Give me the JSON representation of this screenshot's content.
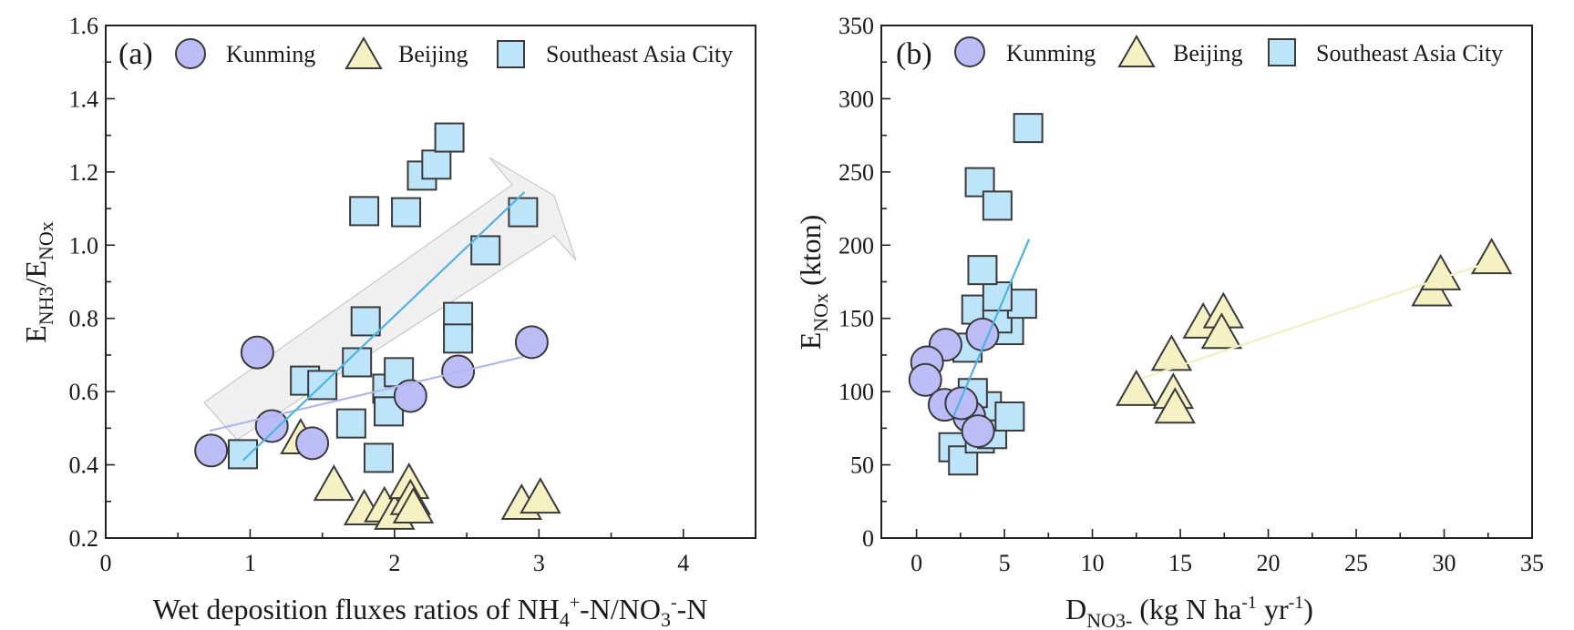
{
  "colors": {
    "Kunming": "#bcbdf6",
    "Beijing": "#f6f1c2",
    "Southeast Asia City": "#bde5fa",
    "marker_edge": "#3a3a3a",
    "trend_Kunming": "#b3b5f2",
    "trend_Southeast Asia City": "#4db3e6",
    "trend_Beijing": "#f2eec0",
    "arrow_fill": "#f0f0f0",
    "arrow_edge": "#c8c8c8"
  },
  "chart_data": [
    {
      "type": "scatter",
      "panel_label": "(a)",
      "title": "",
      "xlabel": {
        "main": "Wet deposition fluxes ratios of NH",
        "sub1": "4",
        "sup1": "+",
        "mid": "-N/NO",
        "sub2": "3",
        "sup2": "-",
        "end": "-N"
      },
      "ylabel": {
        "E1": "E",
        "sub1": "NH3",
        "slash": "/E",
        "sub2": "NOx"
      },
      "xlim": [
        0,
        4.5
      ],
      "ylim": [
        0.2,
        1.6
      ],
      "xticks": [
        0,
        1,
        2,
        3,
        4
      ],
      "xminor": [
        0.5,
        1.5,
        2.5,
        3.5
      ],
      "yticks": [
        0.2,
        0.4,
        0.6,
        0.8,
        1.0,
        1.2,
        1.4,
        1.6
      ],
      "ytick_labels": [
        "0.2",
        "0.4",
        "0.6",
        "0.8",
        "1.0",
        "1.2",
        "1.4",
        "1.6"
      ],
      "yminor": [
        0.3,
        0.5,
        0.7,
        0.9,
        1.1,
        1.3,
        1.5
      ],
      "legend": {
        "placement": "top",
        "entries": [
          "Kunming",
          "Beijing",
          "Southeast Asia City"
        ]
      },
      "annotation": "shaded arrow indicating increasing trend",
      "series": [
        {
          "name": "Kunming",
          "marker": "circle",
          "x": [
            0.73,
            1.05,
            1.15,
            1.43,
            2.11,
            2.44,
            2.95
          ],
          "y": [
            0.439,
            0.707,
            0.506,
            0.459,
            0.588,
            0.655,
            0.735
          ]
        },
        {
          "name": "Beijing",
          "marker": "triangle",
          "x": [
            1.35,
            1.58,
            1.79,
            1.93,
            2.0,
            2.1,
            2.11,
            2.13,
            2.88,
            3.01
          ],
          "y": [
            0.476,
            0.349,
            0.282,
            0.29,
            0.27,
            0.354,
            0.31,
            0.287,
            0.297,
            0.314
          ]
        },
        {
          "name": "Southeast Asia City",
          "marker": "square",
          "x": [
            0.95,
            1.38,
            1.5,
            1.7,
            1.74,
            1.79,
            1.8,
            1.89,
            1.95,
            1.96,
            2.03,
            2.08,
            2.19,
            2.29,
            2.38,
            2.44,
            2.44,
            2.63,
            2.89
          ],
          "y": [
            0.429,
            0.63,
            0.618,
            0.513,
            0.68,
            1.093,
            0.792,
            0.419,
            0.608,
            0.546,
            0.653,
            1.09,
            1.19,
            1.22,
            1.294,
            0.804,
            0.745,
            0.986,
            1.09
          ]
        }
      ],
      "trendlines": [
        {
          "name": "Kunming",
          "x": [
            0.72,
            2.89
          ],
          "y": [
            0.493,
            0.695
          ]
        },
        {
          "name": "Southeast Asia City",
          "x": [
            0.95,
            2.9
          ],
          "y": [
            0.412,
            1.145
          ]
        }
      ]
    },
    {
      "type": "scatter",
      "panel_label": "(b)",
      "title": "",
      "xlabel": {
        "main": "D",
        "sub": "NO3-",
        "rest1": " (kg N ha",
        "sup1": "-1",
        "rest2": " yr",
        "sup2": "-1",
        "rest3": ")"
      },
      "ylabel": {
        "main": "E",
        "sub": "NOx",
        "rest": " (kton)"
      },
      "xlim": [
        -2,
        35
      ],
      "ylim": [
        0,
        350
      ],
      "xticks": [
        0,
        5,
        10,
        15,
        20,
        25,
        30,
        35
      ],
      "xminor": [
        2.5,
        7.5,
        12.5,
        17.5,
        22.5,
        27.5,
        32.5
      ],
      "yticks": [
        0,
        50,
        100,
        150,
        200,
        250,
        300,
        350
      ],
      "ytick_labels": [
        "0",
        "50",
        "100",
        "150",
        "200",
        "250",
        "300",
        "350"
      ],
      "yminor": [
        25,
        75,
        125,
        175,
        225,
        275,
        325
      ],
      "legend": {
        "placement": "top",
        "entries": [
          "Kunming",
          "Beijing",
          "Southeast Asia City"
        ]
      },
      "series": [
        {
          "name": "Southeast Asia City",
          "marker": "square",
          "x": [
            2.1,
            2.65,
            3.6,
            4.3,
            4.0,
            5.3,
            3.2,
            2.9,
            5.26,
            3.4,
            4.6,
            6.0,
            4.6,
            3.75,
            3.6,
            4.6,
            6.35
          ],
          "y": [
            62,
            53,
            68,
            71,
            90,
            83,
            99,
            130,
            142,
            156,
            150,
            160,
            165,
            183,
            243,
            227,
            280
          ]
        },
        {
          "name": "Kunming",
          "marker": "circle",
          "x": [
            1.65,
            0.6,
            0.5,
            1.6,
            3.0,
            2.55,
            3.5,
            3.75
          ],
          "y": [
            132,
            120,
            108,
            91,
            83,
            92,
            73,
            139
          ]
        },
        {
          "name": "Beijing",
          "marker": "triangle",
          "x": [
            12.5,
            14.6,
            14.7,
            14.5,
            16.3,
            17.45,
            17.35,
            29.3,
            29.8,
            32.7
          ],
          "y": [
            102,
            100,
            90,
            126,
            148,
            155,
            141,
            170,
            181,
            192
          ]
        }
      ],
      "trendlines": [
        {
          "name": "Southeast Asia City",
          "x": [
            2.1,
            6.4
          ],
          "y": [
            83,
            204
          ]
        },
        {
          "name": "Beijing",
          "x": [
            12.8,
            32.0
          ],
          "y": [
            109,
            186
          ]
        }
      ]
    }
  ]
}
